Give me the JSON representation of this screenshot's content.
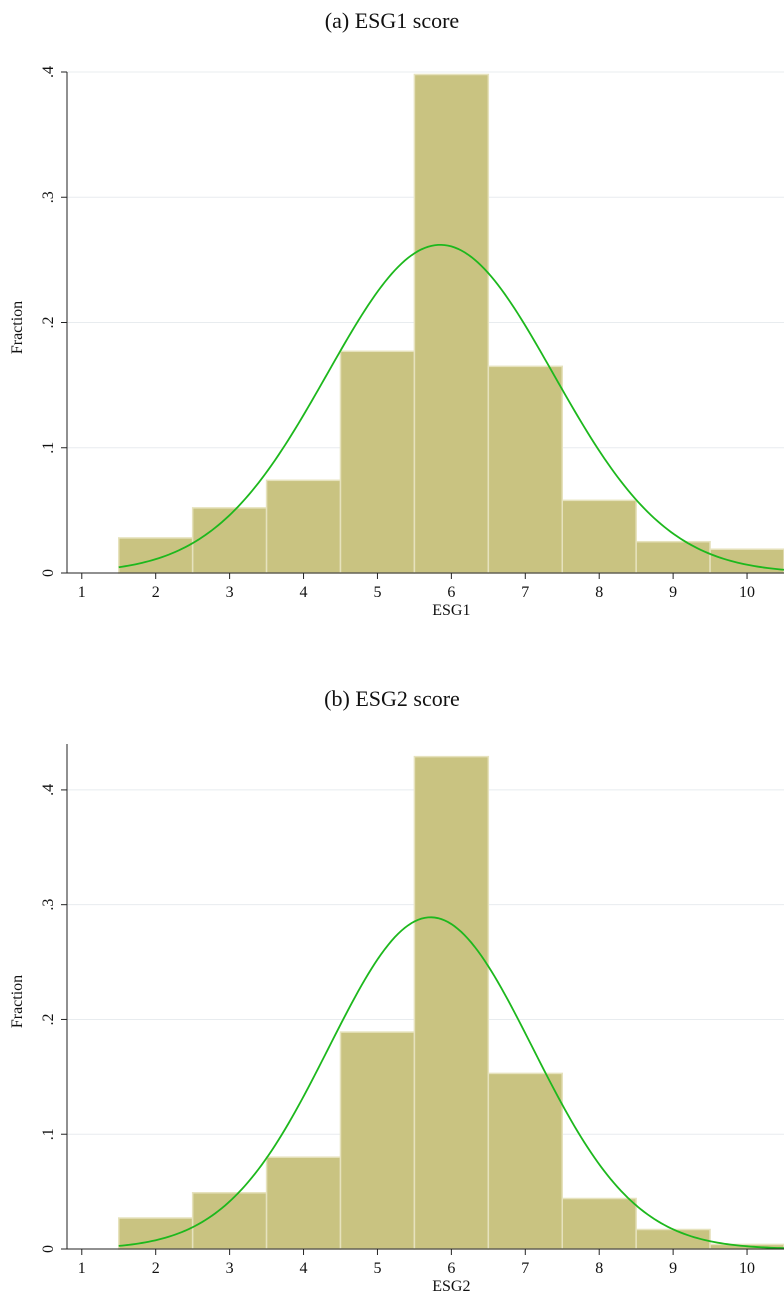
{
  "panels": [
    {
      "caption": "(a) ESG1 score",
      "chart_data": {
        "type": "bar",
        "subtype": "histogram with normal density overlay",
        "xlabel": "ESG1",
        "ylabel": "Fraction",
        "xlim": [
          0.8,
          10.5
        ],
        "ylim": [
          0,
          0.4
        ],
        "xticks": [
          "1",
          "2",
          "3",
          "4",
          "5",
          "6",
          "7",
          "8",
          "9",
          "10"
        ],
        "yticks": [
          "0",
          ".1",
          ".2",
          ".3",
          ".4"
        ],
        "grid": "horizontal",
        "bins": [
          {
            "from": 1.5,
            "to": 2.5,
            "value": 0.028
          },
          {
            "from": 2.5,
            "to": 3.5,
            "value": 0.052
          },
          {
            "from": 3.5,
            "to": 4.5,
            "value": 0.074
          },
          {
            "from": 4.5,
            "to": 5.5,
            "value": 0.177
          },
          {
            "from": 5.5,
            "to": 6.5,
            "value": 0.398
          },
          {
            "from": 6.5,
            "to": 7.5,
            "value": 0.165
          },
          {
            "from": 7.5,
            "to": 8.5,
            "value": 0.058
          },
          {
            "from": 8.5,
            "to": 9.5,
            "value": 0.025
          },
          {
            "from": 9.5,
            "to": 10.5,
            "value": 0.019
          }
        ],
        "normal_curve": {
          "mean": 5.85,
          "sd": 1.53,
          "peak": 0.262,
          "x_range": [
            1.5,
            10.5
          ]
        },
        "bar_color": "#c9c381",
        "curve_color": "#1db81d"
      }
    },
    {
      "caption": "(b) ESG2 score",
      "chart_data": {
        "type": "bar",
        "subtype": "histogram with normal density overlay",
        "xlabel": "ESG2",
        "ylabel": "Fraction",
        "xlim": [
          0.8,
          10.5
        ],
        "ylim": [
          0,
          0.44
        ],
        "xticks": [
          "1",
          "2",
          "3",
          "4",
          "5",
          "6",
          "7",
          "8",
          "9",
          "10"
        ],
        "yticks": [
          "0",
          ".1",
          ".2",
          ".3",
          ".4"
        ],
        "grid": "horizontal",
        "bins": [
          {
            "from": 1.5,
            "to": 2.5,
            "value": 0.027
          },
          {
            "from": 2.5,
            "to": 3.5,
            "value": 0.049
          },
          {
            "from": 3.5,
            "to": 4.5,
            "value": 0.08
          },
          {
            "from": 4.5,
            "to": 5.5,
            "value": 0.189
          },
          {
            "from": 5.5,
            "to": 6.5,
            "value": 0.429
          },
          {
            "from": 6.5,
            "to": 7.5,
            "value": 0.153
          },
          {
            "from": 7.5,
            "to": 8.5,
            "value": 0.044
          },
          {
            "from": 8.5,
            "to": 9.5,
            "value": 0.017
          },
          {
            "from": 9.5,
            "to": 10.5,
            "value": 0.004
          }
        ],
        "normal_curve": {
          "mean": 5.72,
          "sd": 1.38,
          "peak": 0.289,
          "x_range": [
            1.5,
            10.5
          ]
        },
        "bar_color": "#c9c381",
        "curve_color": "#1db81d"
      }
    }
  ]
}
